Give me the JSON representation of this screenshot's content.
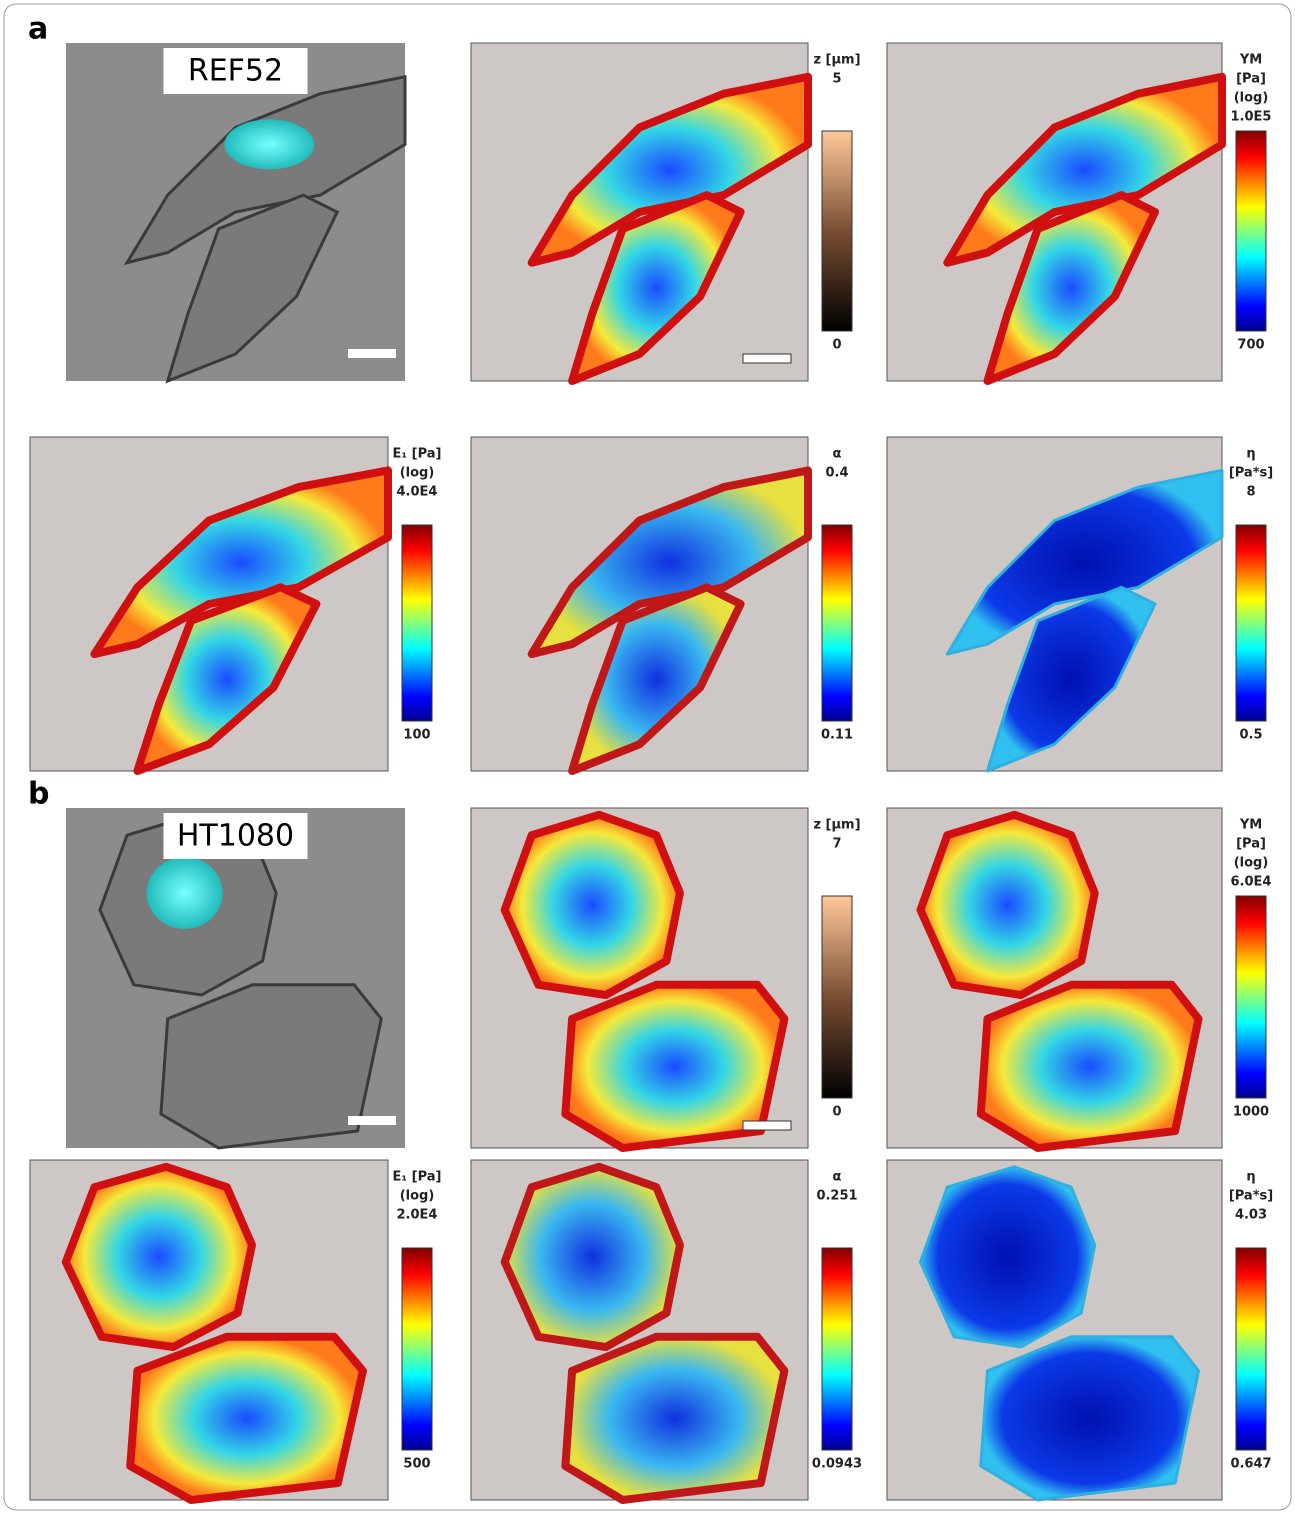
{
  "panels": [
    {
      "label": "a",
      "rows": [
        [
          {
            "caption": "REF52"
          },
          {
            "colorbar": {
              "title": [
                "z [μm]"
              ],
              "max": "5",
              "min": "0"
            }
          },
          {
            "colorbar": {
              "title": [
                "YM",
                "[Pa]",
                "(log)"
              ],
              "max": "1.0E5",
              "min": "700"
            }
          }
        ],
        [
          {
            "colorbar": {
              "title": [
                "E₁ [Pa]",
                "(log)"
              ],
              "max": "4.0E4",
              "min": "100"
            }
          },
          {
            "colorbar": {
              "title": [
                "α"
              ],
              "max": "0.4",
              "min": "0.11"
            }
          },
          {
            "colorbar": {
              "title": [
                "η",
                "[Pa*s]"
              ],
              "max": "8",
              "min": "0.5"
            }
          }
        ]
      ]
    },
    {
      "label": "b",
      "rows": [
        [
          {
            "caption": "HT1080"
          },
          {
            "colorbar": {
              "title": [
                "z [μm]"
              ],
              "max": "7",
              "min": "0"
            }
          },
          {
            "colorbar": {
              "title": [
                "YM",
                "[Pa]",
                "(log)"
              ],
              "max": "6.0E4",
              "min": "1000"
            }
          }
        ],
        [
          {
            "colorbar": {
              "title": [
                "E₁ [Pa]",
                "(log)"
              ],
              "max": "2.0E4",
              "min": "500"
            }
          },
          {
            "colorbar": {
              "title": [
                "α"
              ],
              "max": "0.251",
              "min": "0.0943"
            }
          },
          {
            "colorbar": {
              "title": [
                "η",
                "[Pa*s]"
              ],
              "max": "4.03",
              "min": "0.647"
            }
          }
        ]
      ]
    }
  ]
}
